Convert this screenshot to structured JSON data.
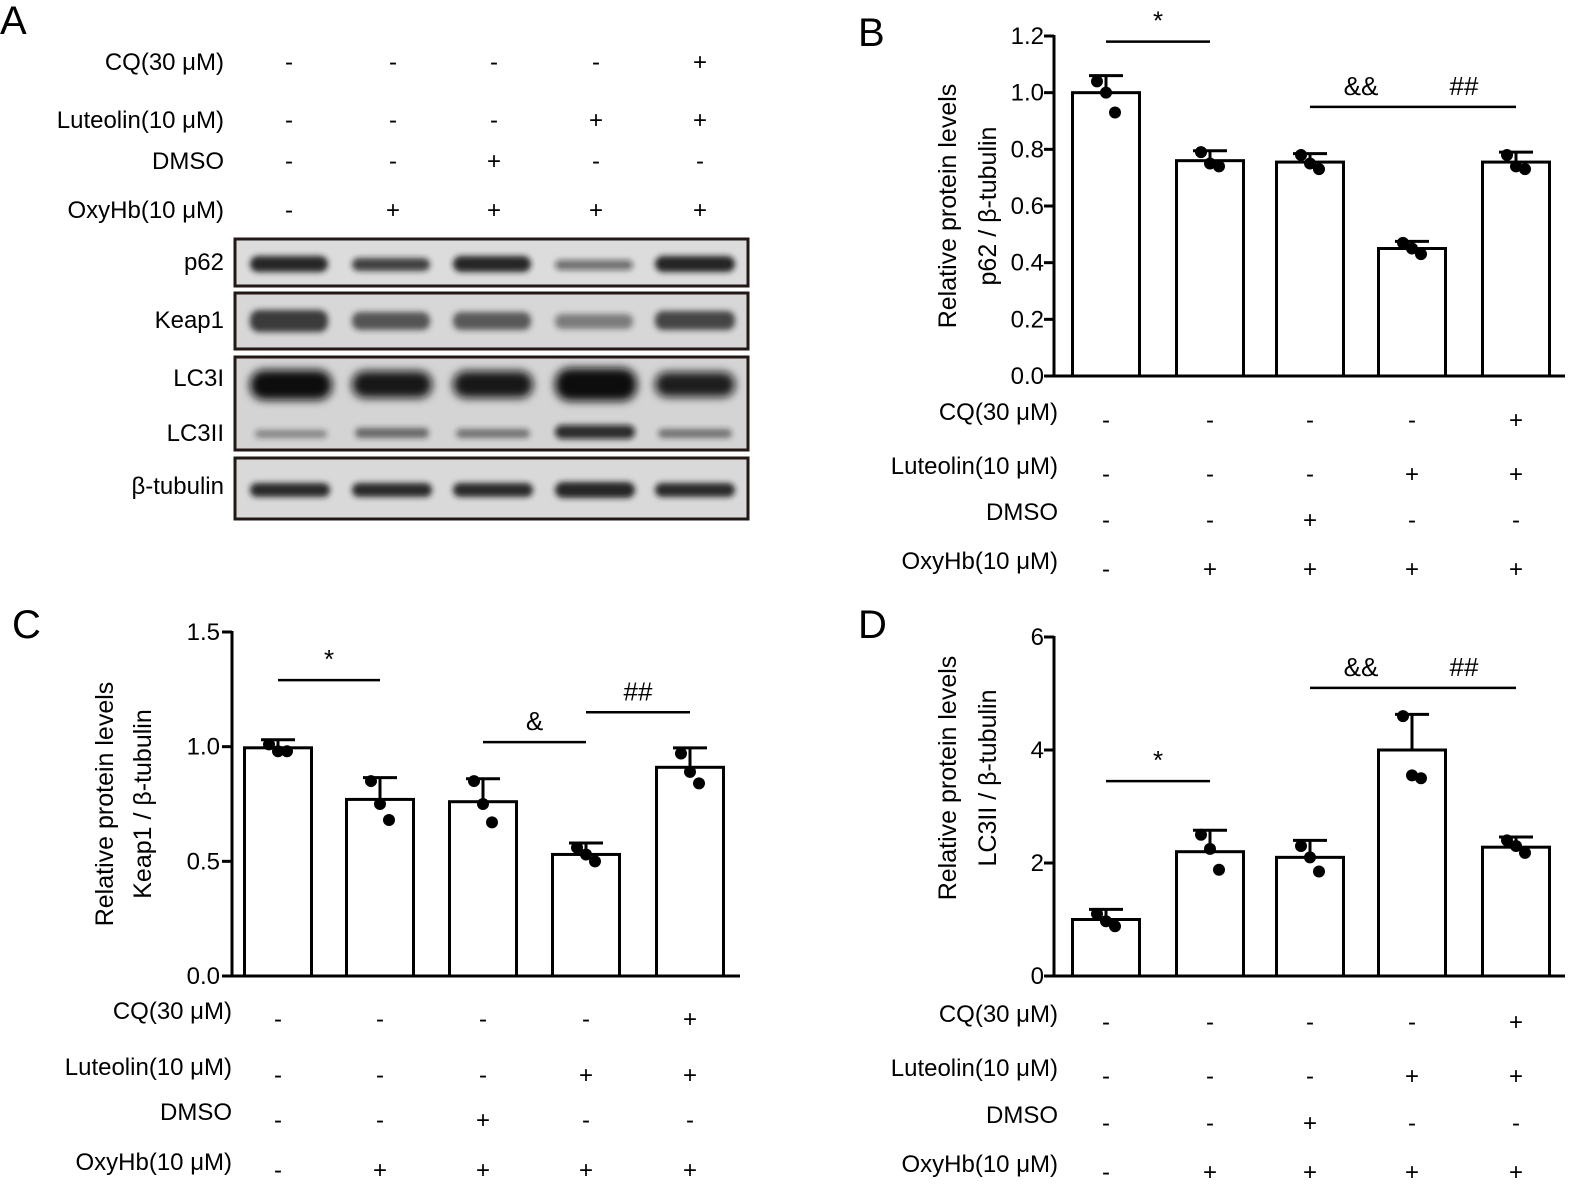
{
  "treatments": {
    "rows": [
      {
        "label": "CQ(30 μM)",
        "signs": [
          "-",
          "-",
          "-",
          "-",
          "+"
        ]
      },
      {
        "label": "Luteolin(10 μM)",
        "signs": [
          "-",
          "-",
          "-",
          "+",
          "+"
        ]
      },
      {
        "label": "DMSO",
        "signs": [
          "-",
          "-",
          "+",
          "-",
          "-"
        ]
      },
      {
        "label": "OxyHb(10 μM)",
        "signs": [
          "-",
          "+",
          "+",
          "+",
          "+"
        ]
      }
    ]
  },
  "panel_a": {
    "letter": "A",
    "bands": [
      {
        "label": "p62"
      },
      {
        "label": "Keap1"
      },
      {
        "label": "LC3I"
      },
      {
        "label": "LC3II"
      },
      {
        "label": "β-tubulin"
      }
    ]
  },
  "chart_data": [
    {
      "letter": "B",
      "type": "bar",
      "ylabel_line1": "Relative protein levels",
      "ylabel_line2": "p62 / β-tubulin",
      "ylim": [
        0,
        1.2
      ],
      "yticks": [
        0.0,
        0.2,
        0.4,
        0.6,
        0.8,
        1.0,
        1.2
      ],
      "ytick_labels": [
        "0.0",
        "0.2",
        "0.4",
        "0.6",
        "0.8",
        "1.0",
        "1.2"
      ],
      "values": [
        1.0,
        0.76,
        0.755,
        0.45,
        0.755
      ],
      "errors": [
        0.06,
        0.035,
        0.03,
        0.025,
        0.035
      ],
      "points": [
        [
          1.04,
          1.0,
          0.93
        ],
        [
          0.79,
          0.75,
          0.74
        ],
        [
          0.78,
          0.75,
          0.73
        ],
        [
          0.47,
          0.45,
          0.43
        ],
        [
          0.78,
          0.74,
          0.73
        ]
      ],
      "significance": [
        {
          "from": 0,
          "to": 1,
          "value": 1.18,
          "label": "*"
        },
        {
          "from": 2,
          "to": 3,
          "value": 0.95,
          "label": "&&"
        },
        {
          "from": 3,
          "to": 4,
          "value": 0.95,
          "label": "##"
        }
      ]
    },
    {
      "letter": "C",
      "type": "bar",
      "ylabel_line1": "Relative protein levels",
      "ylabel_line2": "Keap1 / β-tubulin",
      "ylim": [
        0,
        1.5
      ],
      "yticks": [
        0.0,
        0.5,
        1.0,
        1.5
      ],
      "ytick_labels": [
        "0.0",
        "0.5",
        "1.0",
        "1.5"
      ],
      "values": [
        0.995,
        0.77,
        0.76,
        0.53,
        0.91
      ],
      "errors": [
        0.035,
        0.095,
        0.1,
        0.05,
        0.085
      ],
      "points": [
        [
          1.01,
          0.98,
          0.98
        ],
        [
          0.85,
          0.75,
          0.68
        ],
        [
          0.85,
          0.75,
          0.67
        ],
        [
          0.56,
          0.53,
          0.5
        ],
        [
          0.97,
          0.89,
          0.84
        ]
      ],
      "significance": [
        {
          "from": 0,
          "to": 1,
          "value": 1.29,
          "label": "*"
        },
        {
          "from": 2,
          "to": 3,
          "value": 1.02,
          "label": "&"
        },
        {
          "from": 3,
          "to": 4,
          "value": 1.15,
          "label": "##"
        }
      ]
    },
    {
      "letter": "D",
      "type": "bar",
      "ylabel_line1": "Relative protein levels",
      "ylabel_line2": "LC3II / β-tubulin",
      "ylim": [
        0,
        6
      ],
      "yticks": [
        0,
        2,
        4,
        6
      ],
      "ytick_labels": [
        "0",
        "2",
        "4",
        "6"
      ],
      "values": [
        1.0,
        2.2,
        2.1,
        4.0,
        2.28
      ],
      "errors": [
        0.18,
        0.38,
        0.3,
        0.63,
        0.18
      ],
      "points": [
        [
          1.1,
          0.97,
          0.88
        ],
        [
          2.5,
          2.25,
          1.88
        ],
        [
          2.3,
          2.1,
          1.85
        ],
        [
          4.6,
          3.55,
          3.5
        ],
        [
          2.4,
          2.3,
          2.18
        ]
      ],
      "significance": [
        {
          "from": 0,
          "to": 1,
          "value": 3.45,
          "label": "*"
        },
        {
          "from": 2,
          "to": 3,
          "value": 5.1,
          "label": "&&"
        },
        {
          "from": 3,
          "to": 4,
          "value": 5.1,
          "label": "##"
        }
      ]
    }
  ]
}
